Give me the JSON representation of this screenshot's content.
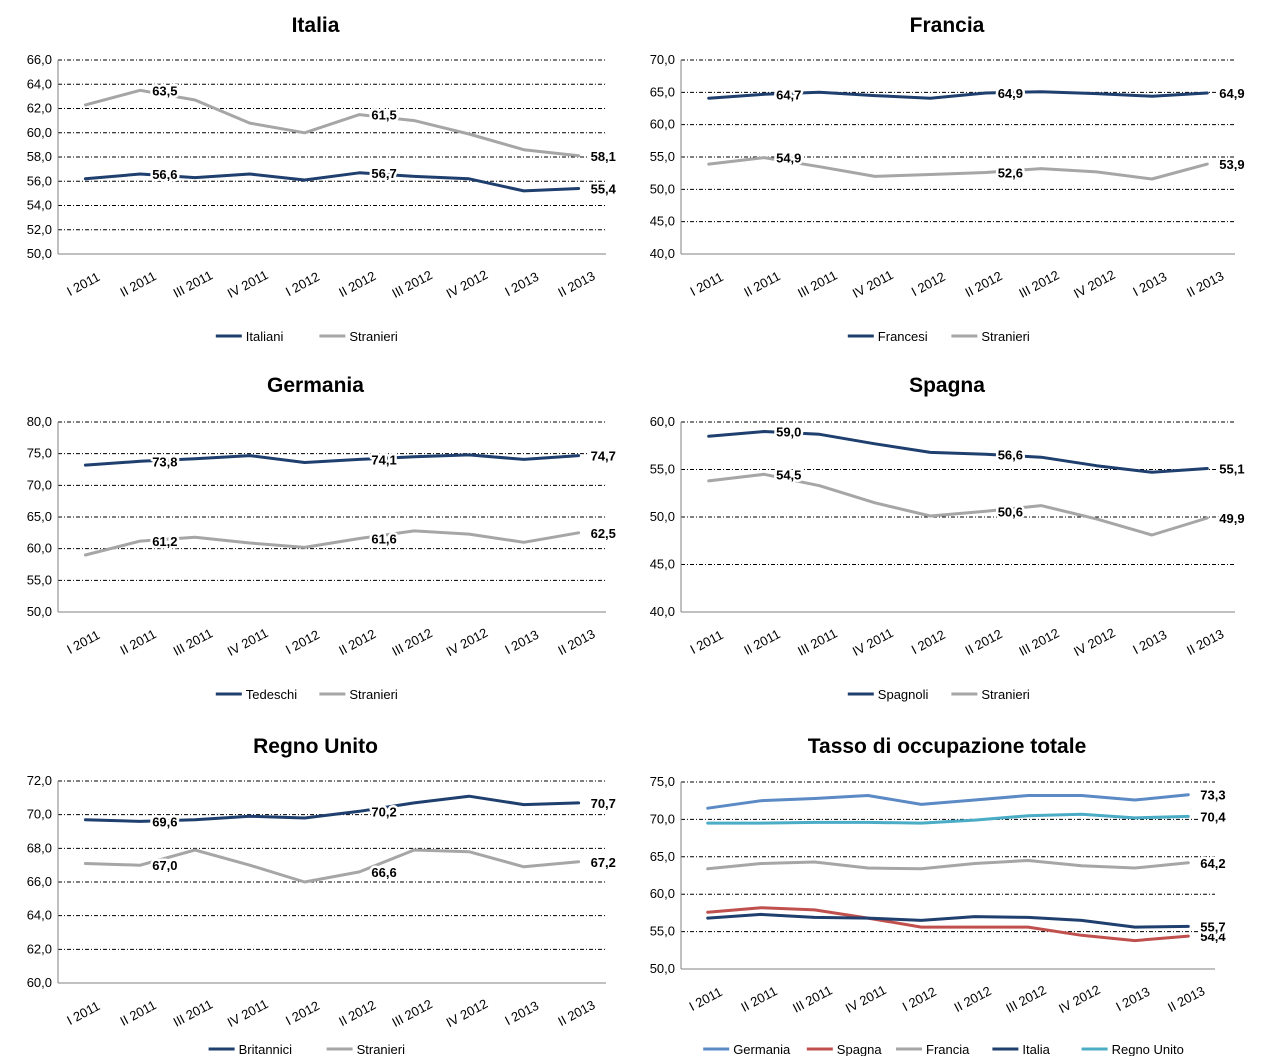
{
  "colors": {
    "navy": "#1f3f6e",
    "gray": "#a6a6a6",
    "lightblue": "#5b8ac5",
    "red": "#c0504d",
    "teal": "#4bacc6"
  },
  "chart_data": [
    {
      "type": "line",
      "title": "Italia",
      "categories": [
        "I 2011",
        "II 2011",
        "III 2011",
        "IV 2011",
        "I 2012",
        "II 2012",
        "III 2012",
        "IV 2012",
        "I 2013",
        "II 2013"
      ],
      "ylim": [
        50,
        66
      ],
      "yticks": [
        "50,0",
        "52,0",
        "54,0",
        "56,0",
        "58,0",
        "60,0",
        "62,0",
        "64,0",
        "66,0"
      ],
      "grid": true,
      "legend": "bottom",
      "series": [
        {
          "name": "Italiani",
          "color": "navy",
          "values": [
            56.2,
            56.6,
            56.3,
            56.6,
            56.1,
            56.7,
            56.4,
            56.2,
            55.2,
            55.4
          ],
          "labels": [
            {
              "i": 1,
              "text": "56,6"
            },
            {
              "i": 5,
              "text": "56,7"
            },
            {
              "i": 9,
              "text": "55,4"
            }
          ]
        },
        {
          "name": "Stranieri",
          "color": "gray",
          "values": [
            62.3,
            63.5,
            62.7,
            60.8,
            60.0,
            61.5,
            61.0,
            59.9,
            58.6,
            58.1
          ],
          "labels": [
            {
              "i": 1,
              "text": "63,5"
            },
            {
              "i": 5,
              "text": "61,5"
            },
            {
              "i": 9,
              "text": "58,1"
            }
          ]
        }
      ]
    },
    {
      "type": "line",
      "title": "Francia",
      "categories": [
        "I 2011",
        "II 2011",
        "III 2011",
        "IV 2011",
        "I 2012",
        "II 2012",
        "III 2012",
        "IV 2012",
        "I 2013",
        "II 2013"
      ],
      "ylim": [
        40,
        70
      ],
      "yticks": [
        "40,0",
        "45,0",
        "50,0",
        "55,0",
        "60,0",
        "65,0",
        "70,0"
      ],
      "grid": true,
      "legend": "bottom",
      "series": [
        {
          "name": "Francesi",
          "color": "navy",
          "values": [
            64.1,
            64.7,
            65.0,
            64.5,
            64.1,
            64.9,
            65.1,
            64.8,
            64.4,
            64.9
          ],
          "labels": [
            {
              "i": 1,
              "text": "64,7"
            },
            {
              "i": 5,
              "text": "64,9"
            },
            {
              "i": 9,
              "text": "64,9"
            }
          ]
        },
        {
          "name": "Stranieri",
          "color": "gray",
          "values": [
            53.9,
            54.9,
            53.5,
            52.0,
            52.3,
            52.6,
            53.2,
            52.7,
            51.6,
            53.9
          ],
          "labels": [
            {
              "i": 1,
              "text": "54,9"
            },
            {
              "i": 5,
              "text": "52,6"
            },
            {
              "i": 9,
              "text": "53,9"
            }
          ]
        }
      ]
    },
    {
      "type": "line",
      "title": "Germania",
      "categories": [
        "I 2011",
        "II 2011",
        "III 2011",
        "IV 2011",
        "I 2012",
        "II 2012",
        "III 2012",
        "IV 2012",
        "I 2013",
        "II 2013"
      ],
      "ylim": [
        50,
        80
      ],
      "yticks": [
        "50,0",
        "55,0",
        "60,0",
        "65,0",
        "70,0",
        "75,0",
        "80,0"
      ],
      "grid": true,
      "legend": "bottom",
      "series": [
        {
          "name": "Tedeschi",
          "color": "navy",
          "values": [
            73.2,
            73.8,
            74.2,
            74.7,
            73.6,
            74.1,
            74.5,
            74.8,
            74.1,
            74.7
          ],
          "labels": [
            {
              "i": 1,
              "text": "73,8"
            },
            {
              "i": 5,
              "text": "74,1"
            },
            {
              "i": 9,
              "text": "74,7"
            }
          ]
        },
        {
          "name": "Stranieri",
          "color": "gray",
          "values": [
            59.0,
            61.2,
            61.8,
            60.9,
            60.2,
            61.6,
            62.8,
            62.3,
            61.0,
            62.5
          ],
          "labels": [
            {
              "i": 1,
              "text": "61,2"
            },
            {
              "i": 5,
              "text": "61,6"
            },
            {
              "i": 9,
              "text": "62,5"
            }
          ]
        }
      ]
    },
    {
      "type": "line",
      "title": "Spagna",
      "categories": [
        "I 2011",
        "II 2011",
        "III 2011",
        "IV 2011",
        "I 2012",
        "II 2012",
        "III 2012",
        "IV 2012",
        "I 2013",
        "II 2013"
      ],
      "ylim": [
        40,
        60
      ],
      "yticks": [
        "40,0",
        "45,0",
        "50,0",
        "55,0",
        "60,0"
      ],
      "grid": true,
      "legend": "bottom",
      "series": [
        {
          "name": "Spagnoli",
          "color": "navy",
          "values": [
            58.5,
            59.0,
            58.7,
            57.7,
            56.8,
            56.6,
            56.3,
            55.4,
            54.7,
            55.1
          ],
          "labels": [
            {
              "i": 1,
              "text": "59,0"
            },
            {
              "i": 5,
              "text": "56,6"
            },
            {
              "i": 9,
              "text": "55,1"
            }
          ]
        },
        {
          "name": "Stranieri",
          "color": "gray",
          "values": [
            53.8,
            54.5,
            53.3,
            51.5,
            50.1,
            50.6,
            51.2,
            49.8,
            48.1,
            49.9
          ],
          "labels": [
            {
              "i": 1,
              "text": "54,5"
            },
            {
              "i": 5,
              "text": "50,6"
            },
            {
              "i": 9,
              "text": "49,9"
            }
          ]
        }
      ]
    },
    {
      "type": "line",
      "title": "Regno Unito",
      "categories": [
        "I 2011",
        "II 2011",
        "III 2011",
        "IV 2011",
        "I 2012",
        "II 2012",
        "III 2012",
        "IV 2012",
        "I 2013",
        "II 2013"
      ],
      "ylim": [
        60,
        72
      ],
      "yticks": [
        "60,0",
        "62,0",
        "64,0",
        "66,0",
        "68,0",
        "70,0",
        "72,0"
      ],
      "grid": true,
      "legend": "bottom",
      "series": [
        {
          "name": "Britannici",
          "color": "navy",
          "values": [
            69.7,
            69.6,
            69.7,
            69.9,
            69.8,
            70.2,
            70.7,
            71.1,
            70.6,
            70.7
          ],
          "labels": [
            {
              "i": 1,
              "text": "69,6"
            },
            {
              "i": 5,
              "text": "70,2"
            },
            {
              "i": 9,
              "text": "70,7"
            }
          ]
        },
        {
          "name": "Stranieri",
          "color": "gray",
          "values": [
            67.1,
            67.0,
            67.9,
            67.0,
            66.0,
            66.6,
            67.9,
            67.8,
            66.9,
            67.2
          ],
          "labels": [
            {
              "i": 1,
              "text": "67,0"
            },
            {
              "i": 5,
              "text": "66,6"
            },
            {
              "i": 9,
              "text": "67,2"
            }
          ]
        }
      ]
    },
    {
      "type": "line",
      "title": "Tasso di occupazione totale",
      "categories": [
        "I 2011",
        "II 2011",
        "III 2011",
        "IV 2011",
        "I 2012",
        "II 2012",
        "III 2012",
        "IV 2012",
        "I 2013",
        "II 2013"
      ],
      "ylim": [
        50,
        75
      ],
      "yticks": [
        "50,0",
        "55,0",
        "60,0",
        "65,0",
        "70,0",
        "75,0"
      ],
      "grid": true,
      "legend": "bottom",
      "series": [
        {
          "name": "Germania",
          "color": "lightblue",
          "values": [
            71.5,
            72.5,
            72.8,
            73.2,
            72.0,
            72.6,
            73.2,
            73.2,
            72.6,
            73.3
          ],
          "labels": [
            {
              "i": 9,
              "text": "73,3"
            }
          ]
        },
        {
          "name": "Spagna",
          "color": "red",
          "values": [
            57.6,
            58.2,
            57.9,
            56.8,
            55.6,
            55.6,
            55.6,
            54.5,
            53.8,
            54.4
          ],
          "labels": [
            {
              "i": 9,
              "text": "54,4"
            }
          ]
        },
        {
          "name": "Francia",
          "color": "gray",
          "values": [
            63.4,
            64.1,
            64.3,
            63.5,
            63.4,
            64.1,
            64.5,
            63.8,
            63.5,
            64.2
          ],
          "labels": [
            {
              "i": 9,
              "text": "64,2"
            }
          ]
        },
        {
          "name": "Italia",
          "color": "navy",
          "values": [
            56.8,
            57.3,
            56.9,
            56.8,
            56.5,
            57.0,
            56.9,
            56.5,
            55.6,
            55.7
          ],
          "labels": [
            {
              "i": 9,
              "text": "55,7"
            }
          ]
        },
        {
          "name": "Regno Unito",
          "color": "teal",
          "values": [
            69.5,
            69.5,
            69.6,
            69.6,
            69.5,
            69.9,
            70.5,
            70.7,
            70.2,
            70.4
          ],
          "labels": [
            {
              "i": 9,
              "text": "70,4"
            }
          ]
        }
      ]
    }
  ]
}
